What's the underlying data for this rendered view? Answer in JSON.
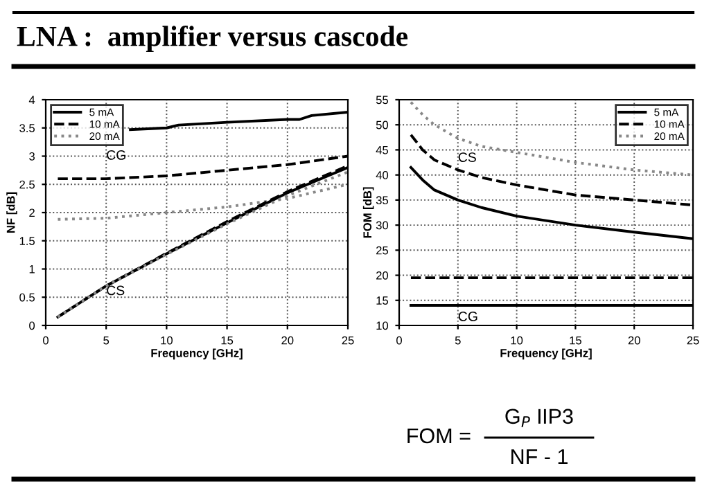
{
  "chart_data": [
    {
      "type": "other",
      "title": "LNA :  amplifier versus cascode",
      "annotations": [
        "FOM =",
        "G$_{P}$ IIP3",
        "NF - 1"
      ]
    },
    {
      "type": "line",
      "xlabel": "Frequency [GHz]",
      "ylabel": "NF [dB]",
      "xlim": [
        0,
        25
      ],
      "xticks": [
        0,
        5,
        10,
        15,
        20,
        25
      ],
      "ylim": [
        0,
        4
      ],
      "yticks": [
        0,
        0.5,
        1,
        1.5,
        2,
        2.5,
        3,
        3.5,
        4
      ],
      "grid": true,
      "legend": "top left",
      "annotations": [
        "CG",
        "CS"
      ],
      "series": [
        {
          "name": "5 mA",
          "color": "#000000",
          "line_style": "solid",
          "x": [
            7,
            10,
            11,
            15,
            20,
            21,
            22,
            25
          ],
          "values": [
            3.47,
            3.5,
            3.55,
            3.6,
            3.65,
            3.65,
            3.72,
            3.78
          ]
        },
        {
          "name": "10 mA",
          "color": "#000000",
          "line_style": "dashed",
          "x": [
            1,
            5,
            10,
            15,
            20,
            25
          ],
          "values": [
            2.6,
            2.6,
            2.65,
            2.75,
            2.85,
            3.0
          ]
        },
        {
          "name": "20 mA",
          "color": "#888888",
          "line_style": "dotted",
          "x": [
            1,
            5,
            10,
            15,
            20,
            25
          ],
          "values": [
            1.88,
            1.9,
            2.0,
            2.1,
            2.25,
            2.5
          ]
        },
        {
          "color": "#000000",
          "line_style": "solid",
          "x": [
            1,
            5,
            10,
            15,
            20,
            25
          ],
          "values": [
            0.15,
            0.7,
            1.27,
            1.82,
            2.35,
            2.8
          ]
        },
        {
          "color": "#000000",
          "line_style": "dashed",
          "x": [
            1,
            5,
            10,
            15,
            20,
            25
          ],
          "values": [
            0.15,
            0.7,
            1.28,
            1.84,
            2.37,
            2.83
          ]
        },
        {
          "color": "#888888",
          "line_style": "dotted",
          "x": [
            1,
            5,
            10,
            15,
            20,
            25
          ],
          "values": [
            0.15,
            0.7,
            1.26,
            1.8,
            2.3,
            2.72
          ]
        }
      ]
    },
    {
      "type": "line",
      "xlabel": "Frequency [GHz]",
      "ylabel": "FOM [dB]",
      "xlim": [
        0,
        25
      ],
      "xticks": [
        0,
        5,
        10,
        15,
        20,
        25
      ],
      "ylim": [
        10,
        55
      ],
      "yticks": [
        10,
        15,
        20,
        25,
        30,
        35,
        40,
        45,
        50,
        55
      ],
      "grid": true,
      "legend": "top right",
      "annotations": [
        "CS",
        "CG"
      ],
      "series": [
        {
          "name": "5 mA",
          "color": "#000000",
          "line_style": "solid",
          "x": [
            1,
            2,
            3,
            5,
            7,
            10,
            15,
            20,
            25
          ],
          "values": [
            41.5,
            39,
            37,
            35,
            33.5,
            31.8,
            30,
            28.6,
            27.3
          ]
        },
        {
          "name": "10 mA",
          "color": "#000000",
          "line_style": "dashed",
          "x": [
            1,
            2,
            3,
            5,
            7,
            10,
            15,
            20,
            25
          ],
          "values": [
            48,
            45,
            43,
            41,
            39.5,
            38,
            36,
            35,
            34
          ]
        },
        {
          "name": "20 mA",
          "color": "#888888",
          "line_style": "dotted",
          "x": [
            1,
            2,
            3,
            5,
            7,
            10,
            15,
            20,
            25
          ],
          "values": [
            54.5,
            52,
            50,
            47.3,
            45.7,
            44.5,
            42.5,
            41,
            40
          ]
        },
        {
          "color": "#000000",
          "line_style": "solid",
          "x": [
            1,
            25
          ],
          "values": [
            14,
            14
          ]
        },
        {
          "color": "#000000",
          "line_style": "dashed",
          "x": [
            1,
            25
          ],
          "values": [
            19.5,
            19.5
          ]
        }
      ]
    }
  ]
}
